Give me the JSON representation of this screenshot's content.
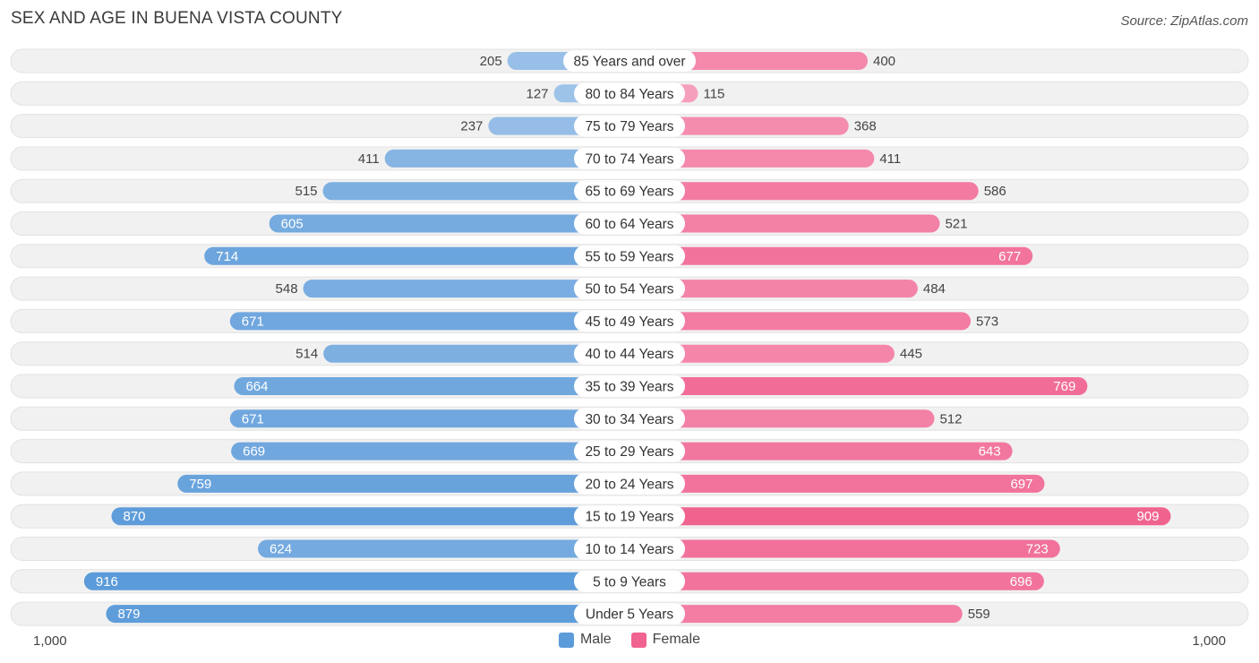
{
  "header": {
    "title": "SEX AND AGE IN BUENA VISTA COUNTY",
    "source": "Source: ZipAtlas.com"
  },
  "colors": {
    "male": "#5b9bd9",
    "female": "#f0628f",
    "male_light": "#a9c9ec",
    "female_light": "#f7a8c2",
    "row_bg": "#f1f1f1"
  },
  "axis": {
    "left_label": "1,000",
    "right_label": "1,000"
  },
  "legend": {
    "male_label": "Male",
    "female_label": "Female"
  },
  "chart_data": {
    "type": "bar",
    "orientation": "horizontal-diverging",
    "title": "SEX AND AGE IN BUENA VISTA COUNTY",
    "xlim": [
      -1000,
      1000
    ],
    "categories": [
      "85 Years and over",
      "80 to 84 Years",
      "75 to 79 Years",
      "70 to 74 Years",
      "65 to 69 Years",
      "60 to 64 Years",
      "55 to 59 Years",
      "50 to 54 Years",
      "45 to 49 Years",
      "40 to 44 Years",
      "35 to 39 Years",
      "30 to 34 Years",
      "25 to 29 Years",
      "20 to 24 Years",
      "15 to 19 Years",
      "10 to 14 Years",
      "5 to 9 Years",
      "Under 5 Years"
    ],
    "series": [
      {
        "name": "Male",
        "values": [
          205,
          127,
          237,
          411,
          515,
          605,
          714,
          548,
          671,
          514,
          664,
          671,
          669,
          759,
          870,
          624,
          916,
          879
        ]
      },
      {
        "name": "Female",
        "values": [
          400,
          115,
          368,
          411,
          586,
          521,
          677,
          484,
          573,
          445,
          769,
          512,
          643,
          697,
          909,
          723,
          696,
          559
        ]
      }
    ]
  }
}
